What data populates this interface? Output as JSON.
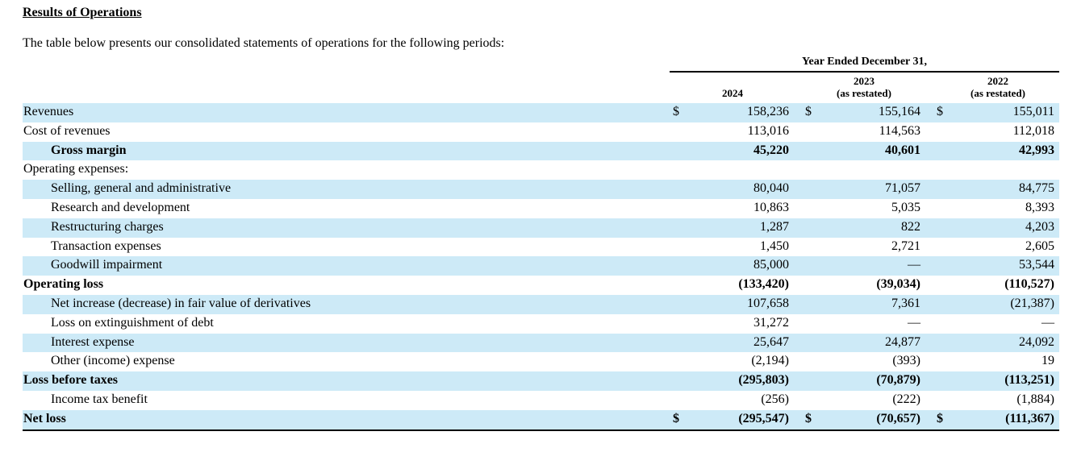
{
  "heading": "Results of Operations",
  "intro": "The table below presents our consolidated statements of operations for the following periods:",
  "year_header": "Year Ended December 31,",
  "columns": [
    {
      "year": "2024",
      "note": ""
    },
    {
      "year": "2023",
      "note": "(as restated)"
    },
    {
      "year": "2022",
      "note": "(as restated)"
    }
  ],
  "currency_symbol": "$",
  "rows": [
    {
      "label": "Revenues",
      "values": [
        "158,236",
        "155,164",
        "155,011"
      ],
      "currency": true,
      "indent": false,
      "bold": false,
      "shade": true
    },
    {
      "label": "Cost of revenues",
      "values": [
        "113,016",
        "114,563",
        "112,018"
      ],
      "currency": false,
      "indent": false,
      "bold": false,
      "shade": false
    },
    {
      "label": "Gross margin",
      "values": [
        "45,220",
        "40,601",
        "42,993"
      ],
      "currency": false,
      "indent": true,
      "bold": true,
      "shade": true
    },
    {
      "label": "Operating expenses:",
      "values": [
        "",
        "",
        ""
      ],
      "currency": false,
      "indent": false,
      "bold": false,
      "shade": false
    },
    {
      "label": "Selling, general and administrative",
      "values": [
        "80,040",
        "71,057",
        "84,775"
      ],
      "currency": false,
      "indent": true,
      "bold": false,
      "shade": true
    },
    {
      "label": "Research and development",
      "values": [
        "10,863",
        "5,035",
        "8,393"
      ],
      "currency": false,
      "indent": true,
      "bold": false,
      "shade": false
    },
    {
      "label": "Restructuring charges",
      "values": [
        "1,287",
        "822",
        "4,203"
      ],
      "currency": false,
      "indent": true,
      "bold": false,
      "shade": true
    },
    {
      "label": "Transaction expenses",
      "values": [
        "1,450",
        "2,721",
        "2,605"
      ],
      "currency": false,
      "indent": true,
      "bold": false,
      "shade": false
    },
    {
      "label": "Goodwill impairment",
      "values": [
        "85,000",
        "—",
        "53,544"
      ],
      "currency": false,
      "indent": true,
      "bold": false,
      "shade": true
    },
    {
      "label": "Operating loss",
      "values": [
        "(133,420)",
        "(39,034)",
        "(110,527)"
      ],
      "currency": false,
      "indent": false,
      "bold": true,
      "shade": false
    },
    {
      "label": "Net increase (decrease) in fair value of derivatives",
      "values": [
        "107,658",
        "7,361",
        "(21,387)"
      ],
      "currency": false,
      "indent": true,
      "bold": false,
      "shade": true
    },
    {
      "label": "Loss on extinguishment of debt",
      "values": [
        "31,272",
        "—",
        "—"
      ],
      "currency": false,
      "indent": true,
      "bold": false,
      "shade": false
    },
    {
      "label": "Interest expense",
      "values": [
        "25,647",
        "24,877",
        "24,092"
      ],
      "currency": false,
      "indent": true,
      "bold": false,
      "shade": true
    },
    {
      "label": "Other (income) expense",
      "values": [
        "(2,194)",
        "(393)",
        "19"
      ],
      "currency": false,
      "indent": true,
      "bold": false,
      "shade": false
    },
    {
      "label": "Loss before taxes",
      "values": [
        "(295,803)",
        "(70,879)",
        "(113,251)"
      ],
      "currency": false,
      "indent": false,
      "bold": true,
      "shade": true
    },
    {
      "label": "Income tax benefit",
      "values": [
        "(256)",
        "(222)",
        "(1,884)"
      ],
      "currency": false,
      "indent": true,
      "bold": false,
      "shade": false
    },
    {
      "label": "Net loss",
      "values": [
        "(295,547)",
        "(70,657)",
        "(111,367)"
      ],
      "currency": true,
      "indent": false,
      "bold": true,
      "shade": true
    }
  ]
}
